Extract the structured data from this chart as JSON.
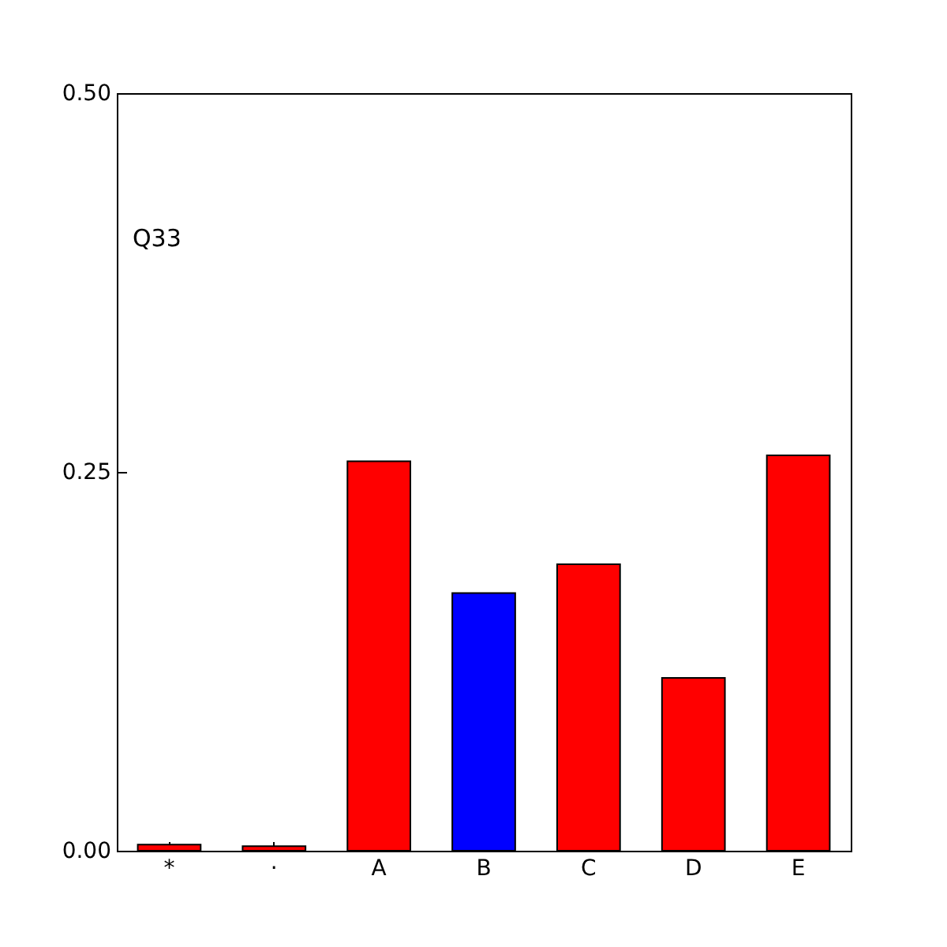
{
  "chart_data": {
    "type": "bar",
    "categories": [
      "*",
      "·",
      "A",
      "B",
      "C",
      "D",
      "E"
    ],
    "values": [
      0.004,
      0.003,
      0.257,
      0.17,
      0.189,
      0.114,
      0.261
    ],
    "colors": [
      "#ff0000",
      "#ff0000",
      "#ff0000",
      "#0000ff",
      "#ff0000",
      "#ff0000",
      "#ff0000"
    ],
    "ylim": [
      0,
      0.5
    ],
    "yticks": [
      {
        "value": 0,
        "label": "0.00"
      },
      {
        "value": 0.25,
        "label": "0.25"
      },
      {
        "value": 0.5,
        "label": "0.50"
      }
    ],
    "annotations": [
      "Q33"
    ]
  }
}
